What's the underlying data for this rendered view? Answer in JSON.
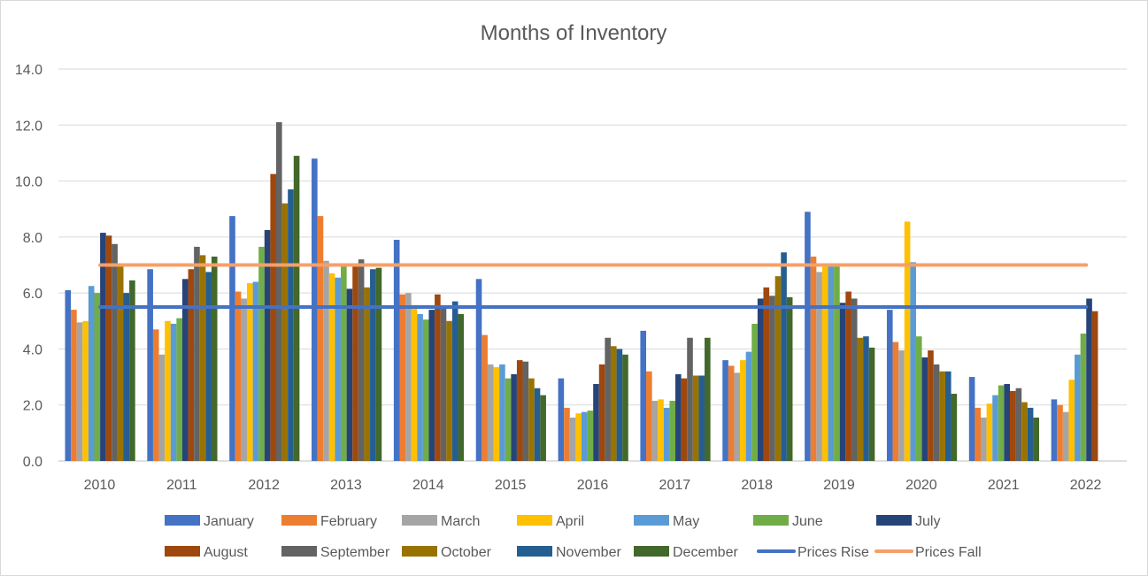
{
  "chart_data": {
    "type": "bar",
    "title": "Months of Inventory",
    "xlabel": "",
    "ylabel": "",
    "ylim": [
      0,
      14
    ],
    "yticks": [
      "0.0",
      "2.0",
      "4.0",
      "6.0",
      "8.0",
      "10.0",
      "12.0",
      "14.0"
    ],
    "grid": true,
    "legend_position": "bottom",
    "categories": [
      "2010",
      "2011",
      "2012",
      "2013",
      "2014",
      "2015",
      "2016",
      "2017",
      "2018",
      "2019",
      "2020",
      "2021",
      "2022"
    ],
    "series": [
      {
        "name": "January",
        "color": "#4472C4",
        "values": [
          6.1,
          6.85,
          8.75,
          10.8,
          7.9,
          6.5,
          2.95,
          4.65,
          3.6,
          8.9,
          5.4,
          3.0,
          2.2
        ]
      },
      {
        "name": "February",
        "color": "#ED7D31",
        "values": [
          5.4,
          4.7,
          6.05,
          8.75,
          5.95,
          4.5,
          1.9,
          3.2,
          3.4,
          7.3,
          4.25,
          1.9,
          2.0
        ]
      },
      {
        "name": "March",
        "color": "#A5A5A5",
        "values": [
          4.95,
          3.8,
          5.8,
          7.15,
          6.0,
          3.45,
          1.55,
          2.15,
          3.15,
          6.75,
          3.95,
          1.55,
          1.75
        ]
      },
      {
        "name": "April",
        "color": "#FFC000",
        "values": [
          5.0,
          5.0,
          6.35,
          6.7,
          5.45,
          3.35,
          1.7,
          2.2,
          3.6,
          7.05,
          8.55,
          2.05,
          2.9
        ]
      },
      {
        "name": "May",
        "color": "#5B9BD5",
        "values": [
          6.25,
          4.9,
          6.4,
          6.55,
          5.25,
          3.45,
          1.75,
          1.9,
          3.9,
          7.0,
          7.1,
          2.35,
          3.8
        ]
      },
      {
        "name": "June",
        "color": "#70AD47",
        "values": [
          6.0,
          5.1,
          7.65,
          7.0,
          5.05,
          2.95,
          1.8,
          2.15,
          4.9,
          7.05,
          4.45,
          2.7,
          4.55
        ]
      },
      {
        "name": "July",
        "color": "#264478",
        "values": [
          8.15,
          6.5,
          8.25,
          6.15,
          5.4,
          3.1,
          2.75,
          3.1,
          5.8,
          5.65,
          3.7,
          2.75,
          5.8
        ]
      },
      {
        "name": "August",
        "color": "#9E480E",
        "values": [
          8.05,
          6.85,
          10.25,
          7.05,
          5.95,
          3.6,
          3.45,
          2.95,
          6.2,
          6.05,
          3.95,
          2.5,
          5.35
        ]
      },
      {
        "name": "September",
        "color": "#636363",
        "values": [
          7.75,
          7.65,
          12.1,
          7.2,
          5.45,
          3.55,
          4.4,
          4.4,
          5.9,
          5.8,
          3.45,
          2.6,
          null
        ]
      },
      {
        "name": "October",
        "color": "#997300",
        "values": [
          7.0,
          7.35,
          9.2,
          6.2,
          5.0,
          2.95,
          4.1,
          3.05,
          6.6,
          4.4,
          3.2,
          2.1,
          null
        ]
      },
      {
        "name": "November",
        "color": "#255E91",
        "values": [
          6.0,
          6.75,
          9.7,
          6.85,
          5.7,
          2.6,
          4.0,
          3.05,
          7.45,
          4.45,
          3.2,
          1.9,
          null
        ]
      },
      {
        "name": "December",
        "color": "#43682B",
        "values": [
          6.45,
          7.3,
          10.9,
          6.9,
          5.25,
          2.35,
          3.8,
          4.4,
          5.85,
          4.05,
          2.4,
          1.55,
          null
        ]
      }
    ],
    "reference_lines": [
      {
        "name": "Prices Rise",
        "color": "#4472C4",
        "value": 5.5
      },
      {
        "name": "Prices Fall",
        "color": "#F4A069",
        "value": 7.0
      }
    ]
  }
}
